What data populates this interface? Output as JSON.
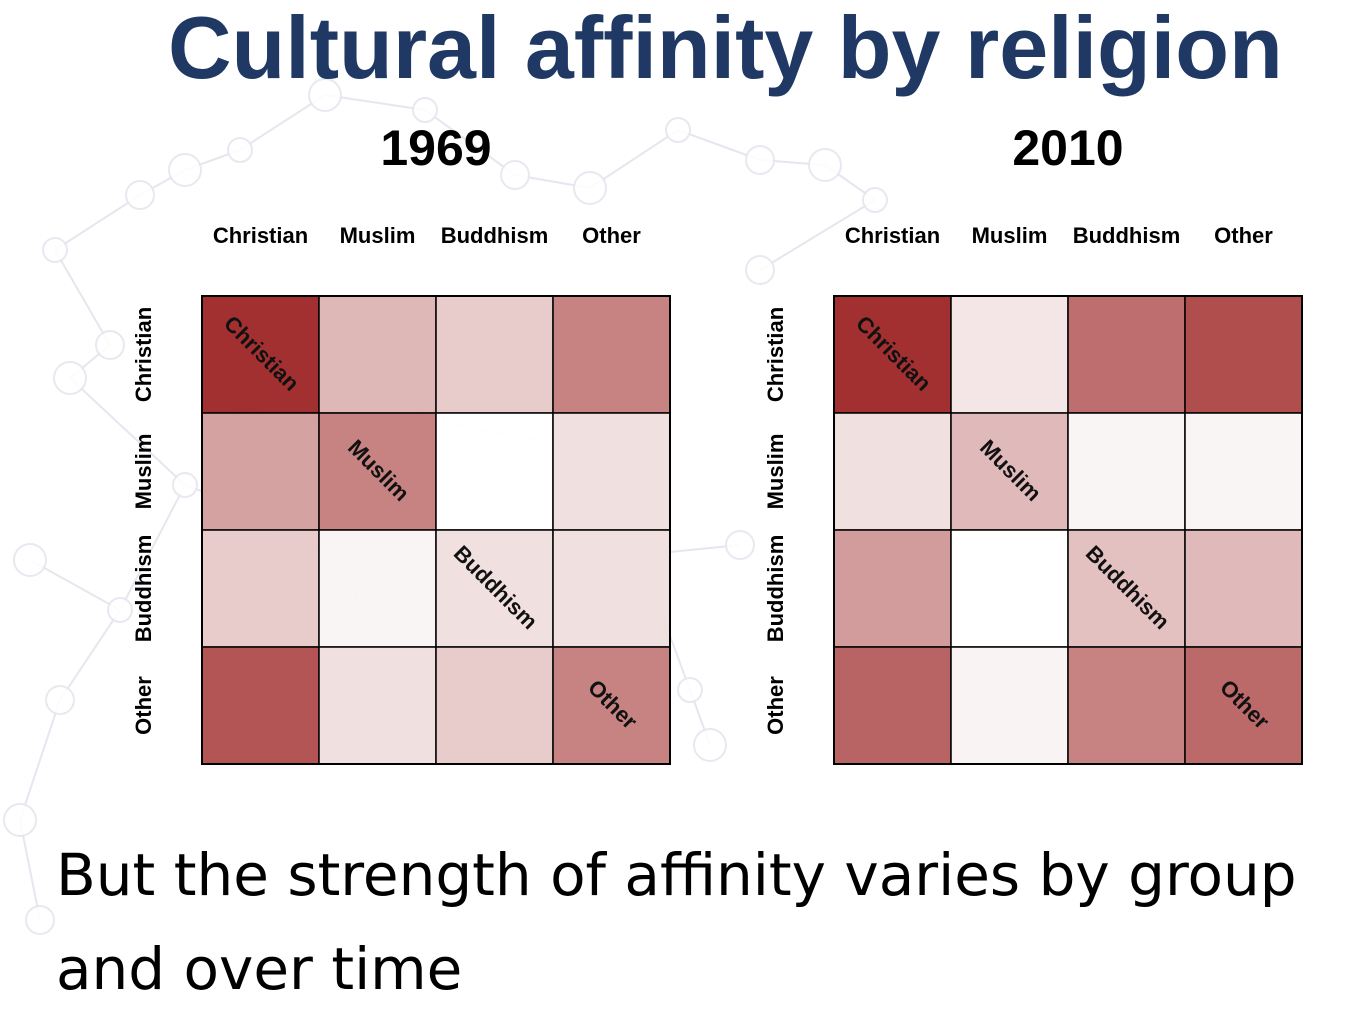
{
  "slide": {
    "title": "Cultural affinity by religion",
    "caption_line1": "But the strength of affinity varies by group",
    "caption_line2": "and over time"
  },
  "colors": {
    "title": "#1f3864",
    "cell_high": "#9b2020",
    "cell_low": "#ffffff",
    "grid": "#000000",
    "background_network": "#e6e6ef"
  },
  "chart_data": [
    {
      "type": "heatmap",
      "title": "1969",
      "categories": [
        "Christian",
        "Muslim",
        "Buddhism",
        "Other"
      ],
      "rows": [
        "Christian",
        "Muslim",
        "Buddhism",
        "Other"
      ],
      "values": [
        [
          1.0,
          0.35,
          0.25,
          0.6
        ],
        [
          0.45,
          0.6,
          0.0,
          0.15
        ],
        [
          0.25,
          0.05,
          0.15,
          0.15
        ],
        [
          0.82,
          0.15,
          0.25,
          0.6
        ]
      ],
      "diagonal_labels": [
        "Christian",
        "Muslim",
        "Buddhism",
        "Other"
      ],
      "scale": "relative affinity (0 = white, 1 = dark red)"
    },
    {
      "type": "heatmap",
      "title": "2010",
      "categories": [
        "Christian",
        "Muslim",
        "Buddhism",
        "Other"
      ],
      "rows": [
        "Christian",
        "Muslim",
        "Buddhism",
        "Other"
      ],
      "values": [
        [
          1.0,
          0.12,
          0.7,
          0.85
        ],
        [
          0.15,
          0.33,
          0.05,
          0.05
        ],
        [
          0.48,
          0.0,
          0.3,
          0.33
        ],
        [
          0.75,
          0.06,
          0.6,
          0.72
        ]
      ],
      "diagonal_labels": [
        "Christian",
        "Muslim",
        "Buddhism",
        "Other"
      ],
      "scale": "relative affinity (0 = white, 1 = dark red)"
    }
  ]
}
